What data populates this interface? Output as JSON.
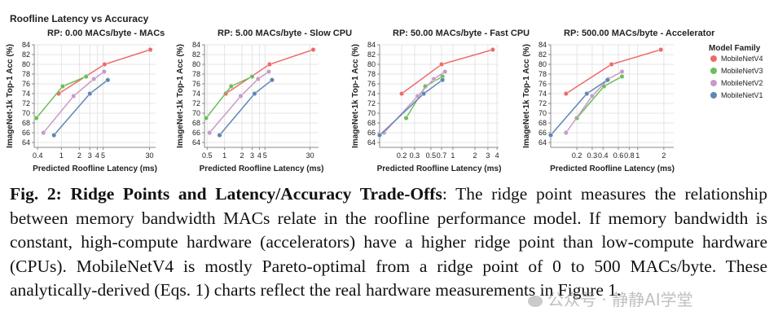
{
  "figure_title": "Roofline Latency vs Accuracy",
  "legend_title": "Model Family",
  "colors": {
    "MobileNetV4": "#ee6a6a",
    "MobileNetV3": "#6bbf59",
    "MobileNetV2": "#c89bc9",
    "MobileNetV1": "#5f86b5"
  },
  "caption": {
    "title": "Fig. 2: Ridge Points and Latency/Accuracy Trade-Offs",
    "body": ": The ridge point measures the relationship between memory bandwidth MACs relate in the roofline performance model. If memory bandwidth is constant, high-compute hardware (accelerators) have a higher ridge point than low-compute hardware (CPUs). MobileNetV4 is mostly Pareto-optimal from a ridge point of 0 to 500 MACs/byte. These analytically-derived (Eqs. 1) charts reflect the real hardware measurements in Figure 1."
  },
  "watermark": "公众号 · 静静AI学堂",
  "chart_data": [
    {
      "type": "line",
      "title": "RP: 0.00 MACs/byte - MACs",
      "xlabel": "Predicted Roofline Latency (ms)",
      "ylabel": "ImageNet-1k Top-1 Acc (%)",
      "xscale": "log",
      "xlim": [
        0.35,
        38
      ],
      "ylim": [
        63,
        84
      ],
      "xticks": [
        0.4,
        1,
        2,
        3,
        4,
        5,
        30
      ],
      "xticklabels": [
        "0.4",
        "1",
        "2",
        "3",
        "4",
        "5",
        "30"
      ],
      "yticks": [
        64,
        66,
        68,
        70,
        72,
        74,
        76,
        78,
        80,
        82,
        84
      ],
      "legend": "right",
      "series": [
        {
          "name": "MobileNetV4",
          "x": [
            0.9,
            5.3,
            31
          ],
          "y": [
            74.0,
            80.0,
            83.0
          ]
        },
        {
          "name": "MobileNetV3",
          "x": [
            0.38,
            1.05,
            2.6
          ],
          "y": [
            69.0,
            75.5,
            77.5
          ]
        },
        {
          "name": "MobileNetV2",
          "x": [
            0.5,
            1.6,
            3.5,
            5.2
          ],
          "y": [
            66.0,
            73.5,
            77.0,
            78.5
          ]
        },
        {
          "name": "MobileNetV1",
          "x": [
            0.75,
            3.0,
            6.0
          ],
          "y": [
            65.5,
            74.0,
            76.8
          ]
        }
      ]
    },
    {
      "type": "line",
      "title": "RP: 5.00 MACs/byte - Slow CPU",
      "xlabel": "Predicted Roofline Latency (ms)",
      "ylabel": "ImageNet-1k Top-1 Acc (%)",
      "xscale": "log",
      "xlim": [
        0.45,
        42
      ],
      "ylim": [
        63,
        84
      ],
      "xticks": [
        0.5,
        1,
        2,
        3,
        4,
        5,
        30
      ],
      "xticklabels": [
        "0.5",
        "1",
        "2",
        "3",
        "4",
        "5",
        "30"
      ],
      "yticks": [
        64,
        66,
        68,
        70,
        72,
        74,
        76,
        78,
        80,
        82,
        84
      ],
      "legend": "right",
      "series": [
        {
          "name": "MobileNetV4",
          "x": [
            1.05,
            6.0,
            34
          ],
          "y": [
            74.0,
            80.0,
            83.0
          ]
        },
        {
          "name": "MobileNetV3",
          "x": [
            0.48,
            1.3,
            3.0
          ],
          "y": [
            69.0,
            75.5,
            77.5
          ]
        },
        {
          "name": "MobileNetV2",
          "x": [
            0.55,
            1.9,
            3.8,
            5.8
          ],
          "y": [
            66.0,
            73.5,
            77.0,
            78.5
          ]
        },
        {
          "name": "MobileNetV1",
          "x": [
            0.82,
            3.3,
            6.6
          ],
          "y": [
            65.5,
            74.0,
            76.8
          ]
        }
      ]
    },
    {
      "type": "line",
      "title": "RP: 50.00 MACs/byte - Fast CPU",
      "xlabel": "Predicted Roofline Latency (ms)",
      "ylabel": "ImageNet-1k Top-1 Acc (%)",
      "xscale": "log",
      "xlim": [
        0.1,
        4.2
      ],
      "ylim": [
        63,
        84
      ],
      "xticks": [
        0.2,
        0.3,
        0.5,
        0.7,
        1,
        2,
        3,
        4
      ],
      "xticklabels": [
        "0.2",
        "0.3",
        "0.5",
        "0.7",
        "1",
        "2",
        "3",
        "4"
      ],
      "yticks": [
        64,
        66,
        68,
        70,
        72,
        74,
        76,
        78,
        80,
        82,
        84
      ],
      "legend": "right",
      "series": [
        {
          "name": "MobileNetV4",
          "x": [
            0.2,
            0.7,
            3.5
          ],
          "y": [
            74.0,
            80.0,
            83.0
          ]
        },
        {
          "name": "MobileNetV3",
          "x": [
            0.23,
            0.42,
            0.72
          ],
          "y": [
            69.0,
            75.5,
            77.5
          ]
        },
        {
          "name": "MobileNetV2",
          "x": [
            0.115,
            0.33,
            0.55,
            0.78
          ],
          "y": [
            66.0,
            73.5,
            77.0,
            78.5
          ]
        },
        {
          "name": "MobileNetV1",
          "x": [
            0.1,
            0.4,
            0.72
          ],
          "y": [
            65.5,
            74.0,
            76.8
          ]
        }
      ]
    },
    {
      "type": "line",
      "title": "RP: 500.00 MACs/byte - Accelerator",
      "xlabel": "Predicted Roofline Latency (ms)",
      "ylabel": "ImageNet-1k Top-1 Acc (%)",
      "xscale": "log",
      "xlim": [
        0.1,
        2.6
      ],
      "ylim": [
        63,
        84
      ],
      "xticks": [
        0.2,
        0.3,
        0.4,
        0.6,
        0.8,
        1,
        2
      ],
      "xticklabels": [
        "0.2",
        "0.3",
        "0.4",
        "0.6",
        "0.8",
        "1",
        "2"
      ],
      "yticks": [
        64,
        66,
        68,
        70,
        72,
        74,
        76,
        78,
        80,
        82,
        84
      ],
      "legend": "right",
      "series": [
        {
          "name": "MobileNetV4",
          "x": [
            0.15,
            0.5,
            1.85
          ],
          "y": [
            74.0,
            80.0,
            83.0
          ]
        },
        {
          "name": "MobileNetV3",
          "x": [
            0.2,
            0.41,
            0.66
          ],
          "y": [
            69.0,
            75.5,
            77.5
          ]
        },
        {
          "name": "MobileNetV2",
          "x": [
            0.15,
            0.3,
            0.46,
            0.66
          ],
          "y": [
            66.0,
            73.5,
            77.0,
            78.5
          ]
        },
        {
          "name": "MobileNetV1",
          "x": [
            0.1,
            0.26,
            0.45
          ],
          "y": [
            65.5,
            74.0,
            76.8
          ]
        }
      ]
    }
  ]
}
